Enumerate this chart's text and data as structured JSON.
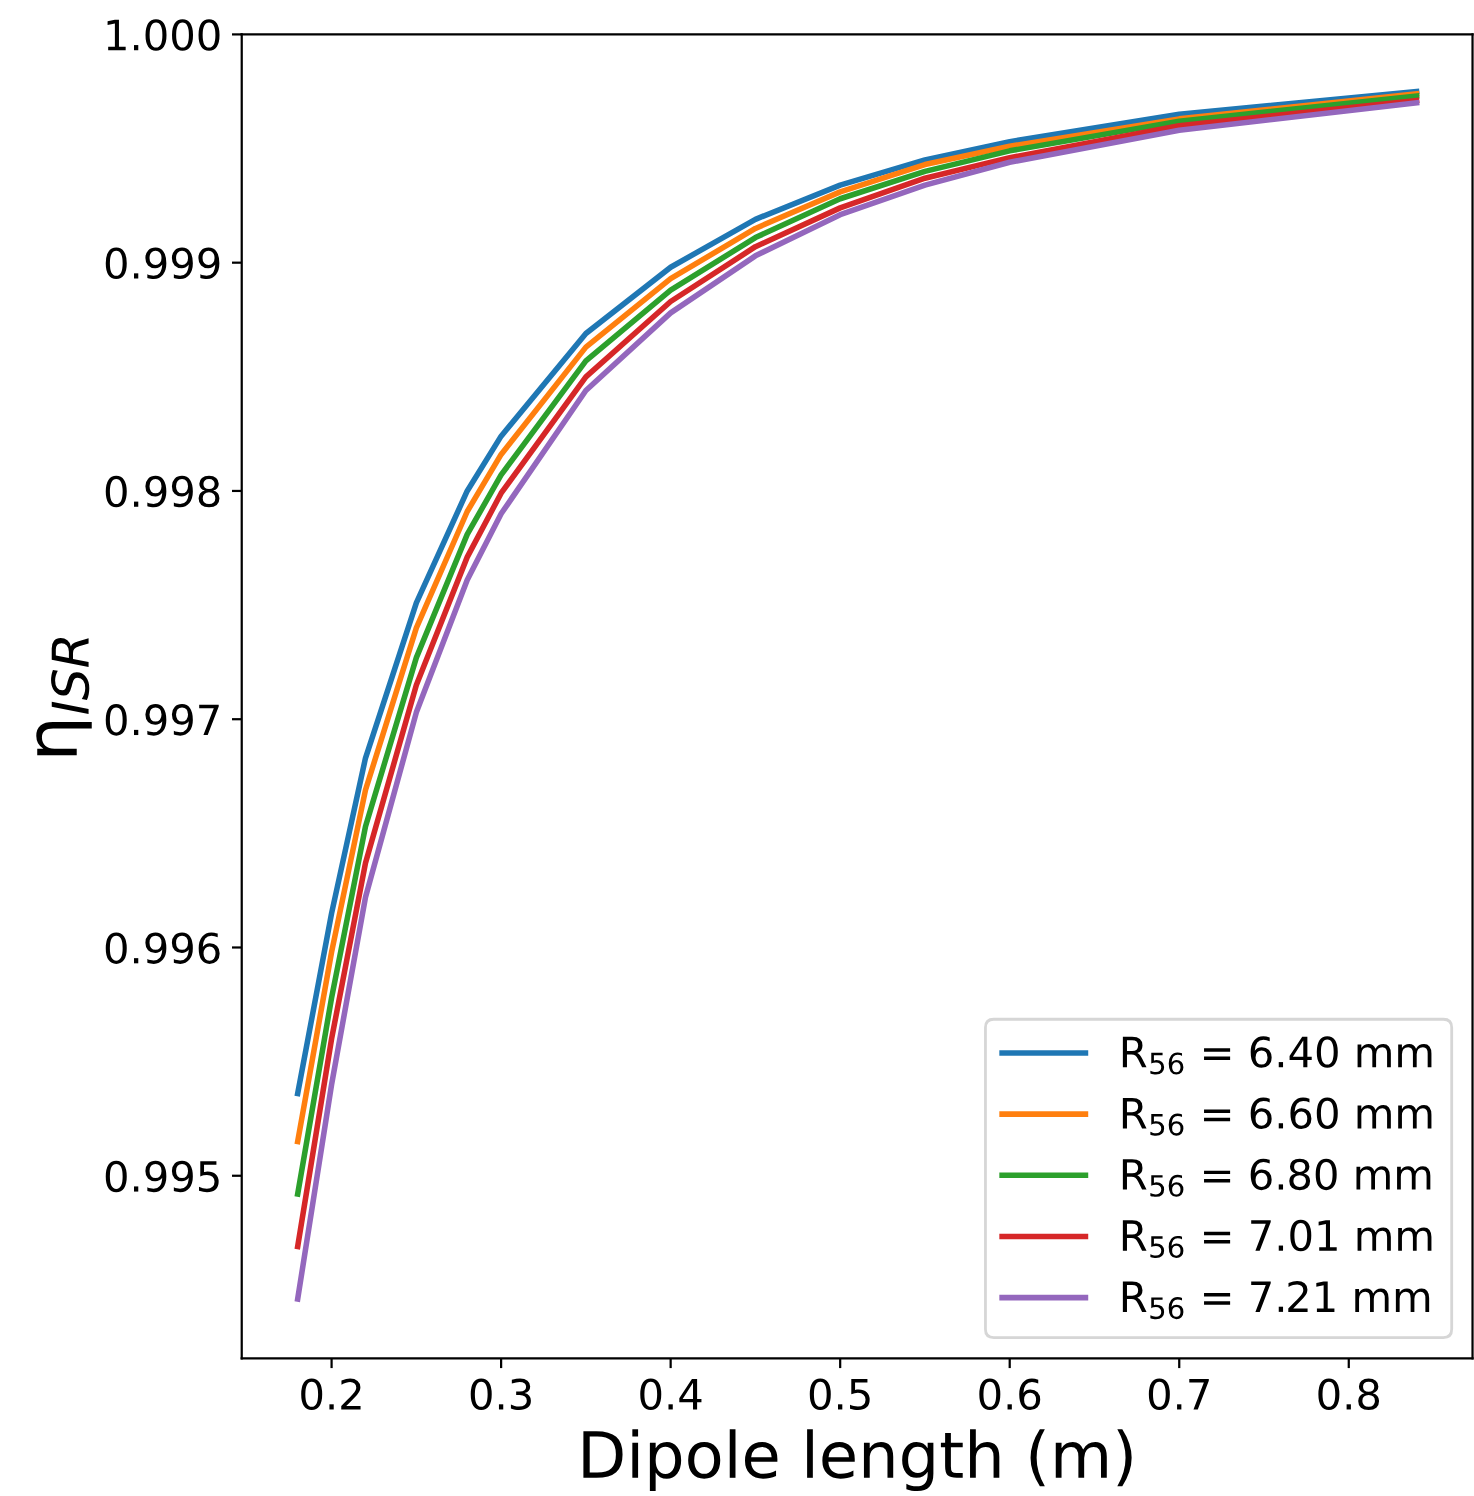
{
  "chart_data": {
    "type": "line",
    "xlabel": "Dipole length (m)",
    "ylabel": "η$_{ISR}$",
    "x": [
      0.18,
      0.2,
      0.22,
      0.25,
      0.28,
      0.3,
      0.35,
      0.4,
      0.45,
      0.5,
      0.55,
      0.6,
      0.7,
      0.84
    ],
    "series": [
      {
        "name": "R$_{56}$ = 6.40 mm",
        "color": "#1f77b4",
        "values": [
          0.99536,
          0.99615,
          0.99683,
          0.99751,
          0.998,
          0.99824,
          0.99869,
          0.99898,
          0.99919,
          0.99934,
          0.99945,
          0.99953,
          0.99965,
          0.99975
        ]
      },
      {
        "name": "R$_{56}$ = 6.60 mm",
        "color": "#ff7f0e",
        "values": [
          0.99515,
          0.99598,
          0.99669,
          0.9974,
          0.99791,
          0.99816,
          0.99863,
          0.99893,
          0.99915,
          0.99931,
          0.99943,
          0.99951,
          0.99963,
          0.99974
        ]
      },
      {
        "name": "R$_{56}$ = 6.80 mm",
        "color": "#2ca02c",
        "values": [
          0.99492,
          0.99578,
          0.99653,
          0.99727,
          0.99781,
          0.99807,
          0.99857,
          0.99888,
          0.99911,
          0.99928,
          0.9994,
          0.99949,
          0.99962,
          0.99973
        ]
      },
      {
        "name": "R$_{56}$ = 7.01 mm",
        "color": "#d62728",
        "values": [
          0.99469,
          0.9956,
          0.99637,
          0.99715,
          0.99771,
          0.99799,
          0.9985,
          0.99883,
          0.99907,
          0.99924,
          0.99937,
          0.99946,
          0.9996,
          0.99971
        ]
      },
      {
        "name": "R$_{56}$ = 7.21 mm",
        "color": "#9467bd",
        "values": [
          0.99446,
          0.9954,
          0.99622,
          0.99703,
          0.99761,
          0.9979,
          0.99844,
          0.99878,
          0.99903,
          0.99921,
          0.99934,
          0.99944,
          0.99958,
          0.9997
        ]
      }
    ],
    "xlim": [
      0.147,
      0.873
    ],
    "ylim": [
      0.9942,
      1.0
    ],
    "xticks": [
      0.2,
      0.3,
      0.4,
      0.5,
      0.6,
      0.7,
      0.8
    ],
    "yticks": [
      0.995,
      0.996,
      0.997,
      0.998,
      0.999,
      {
        "value": 1.0,
        "label": "1.000"
      }
    ],
    "grid": false,
    "legend": "bottom right",
    "marker": "none",
    "line_style": "solid"
  }
}
